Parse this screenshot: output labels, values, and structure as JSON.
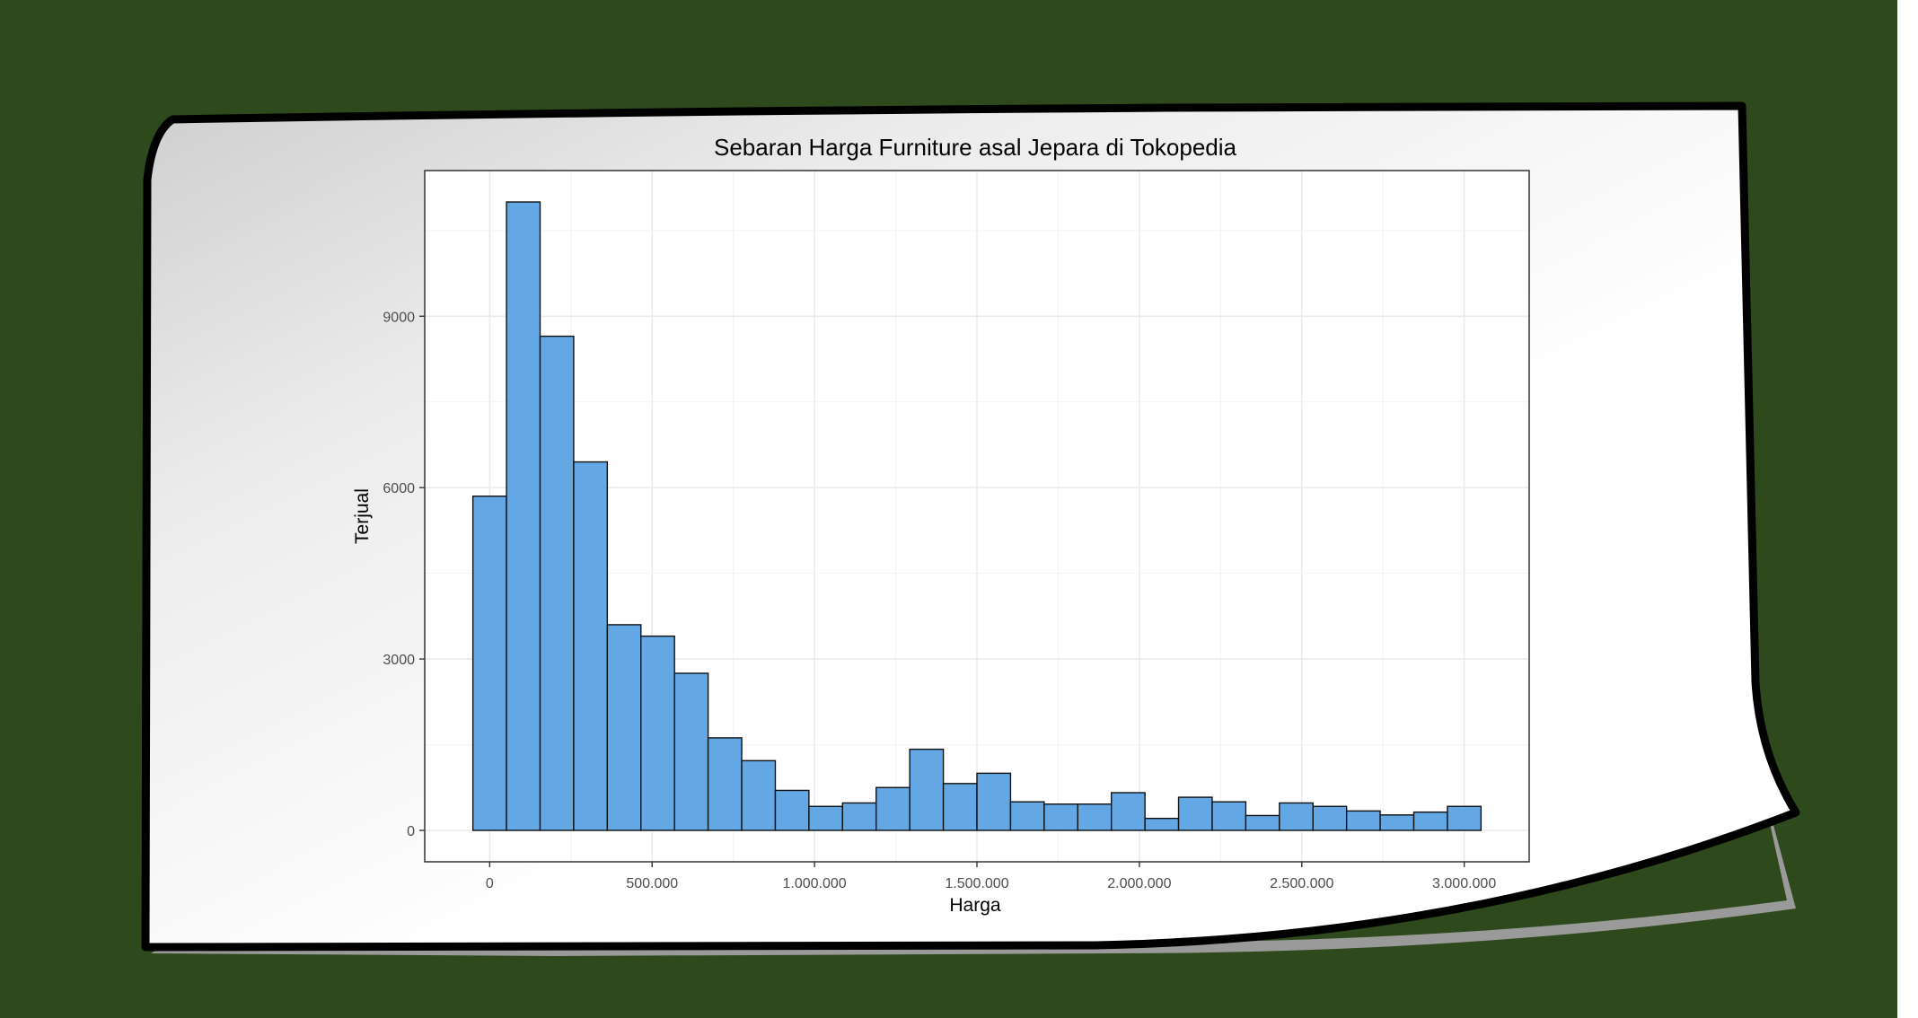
{
  "colors": {
    "background": "#2e4a1c",
    "paper": "#ffffff",
    "bar_fill": "#63a7e4",
    "bar_stroke": "#111111",
    "grid_major": "#ebebeb",
    "grid_minor": "#f3f3f3",
    "panel_border": "#333333"
  },
  "chart_data": {
    "type": "bar",
    "title": "Sebaran Harga Furniture asal Jepara di Tokopedia",
    "xlabel": "Harga",
    "ylabel": "Terjual",
    "bin_width": 103448,
    "bin_centers": [
      0,
      103448,
      206897,
      310345,
      413793,
      517241,
      620690,
      724138,
      827586,
      931034,
      1034483,
      1137931,
      1241379,
      1344828,
      1448276,
      1551724,
      1655172,
      1758621,
      1862069,
      1965517,
      2068966,
      2172414,
      2275862,
      2379310,
      2482759,
      2586207,
      2689655,
      2793103,
      2896552,
      3000000
    ],
    "values": [
      5850,
      11000,
      8650,
      6450,
      3600,
      3400,
      2750,
      1620,
      1220,
      700,
      420,
      480,
      750,
      1420,
      820,
      1000,
      500,
      460,
      460,
      660,
      210,
      580,
      500,
      260,
      480,
      420,
      340,
      270,
      320,
      420
    ],
    "xlim": [
      -200000,
      3200000
    ],
    "ylim": [
      -550,
      11550
    ],
    "x_ticks": [
      0,
      500000,
      1000000,
      1500000,
      2000000,
      2500000,
      3000000
    ],
    "x_tick_labels": [
      "0",
      "500.000",
      "1.000.000",
      "1.500.000",
      "2.000.000",
      "2.500.000",
      "3.000.000"
    ],
    "y_ticks": [
      0,
      3000,
      6000,
      9000
    ],
    "y_tick_labels": [
      "0",
      "3000",
      "6000",
      "9000"
    ],
    "grid": true,
    "legend": "none"
  }
}
